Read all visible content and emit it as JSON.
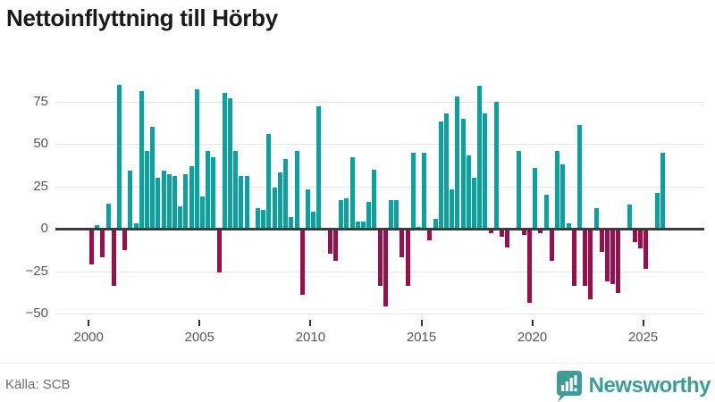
{
  "header": {
    "title": "Nettoinflyttning till Hörby"
  },
  "footer": {
    "source": "Källa: SCB",
    "brand": "Newsworthy",
    "brand_icon": "bar-chart-speech-bubble-icon"
  },
  "colors": {
    "positive": "#0aa2a0",
    "negative": "#9c0d4c",
    "brand_teal": "#3e9c97"
  },
  "chart_data": {
    "type": "bar",
    "title": "Nettoinflyttning till Hörby",
    "frequency": "quarterly",
    "start_period": "2000Q1",
    "end_period": "2025Q4",
    "values": [
      -20,
      2,
      -16,
      15,
      -33,
      85,
      -12,
      34,
      3,
      81,
      46,
      60,
      30,
      34,
      32,
      31,
      13,
      32,
      37,
      82,
      19,
      46,
      42,
      -25,
      80,
      77,
      46,
      31,
      31,
      0,
      12,
      11,
      56,
      24,
      33,
      41,
      7,
      46,
      -38,
      23,
      10,
      72,
      0,
      -14,
      -18,
      17,
      18,
      42,
      4,
      4,
      16,
      35,
      -33,
      -45,
      17,
      17,
      -16,
      -33,
      45,
      1,
      45,
      -6,
      6,
      63,
      68,
      23,
      78,
      65,
      43,
      30,
      84,
      68,
      -2,
      75,
      -4,
      -10,
      0,
      46,
      -3,
      -43,
      36,
      -2,
      20,
      -18,
      46,
      38,
      3,
      -33,
      61,
      -33,
      -41,
      12,
      -13,
      -30,
      -32,
      -37,
      0,
      14,
      -7,
      -11,
      -23,
      0,
      21,
      45
    ],
    "yticks": [
      75,
      50,
      25,
      0,
      -25,
      -50
    ],
    "ylim": [
      -55,
      90
    ],
    "xticks": [
      2000,
      2005,
      2010,
      2015,
      2020,
      2025
    ],
    "xlabel": "",
    "ylabel": "",
    "grid": true,
    "legend": "none",
    "positive_color": "#0aa2a0",
    "negative_color": "#9c0d4c"
  }
}
